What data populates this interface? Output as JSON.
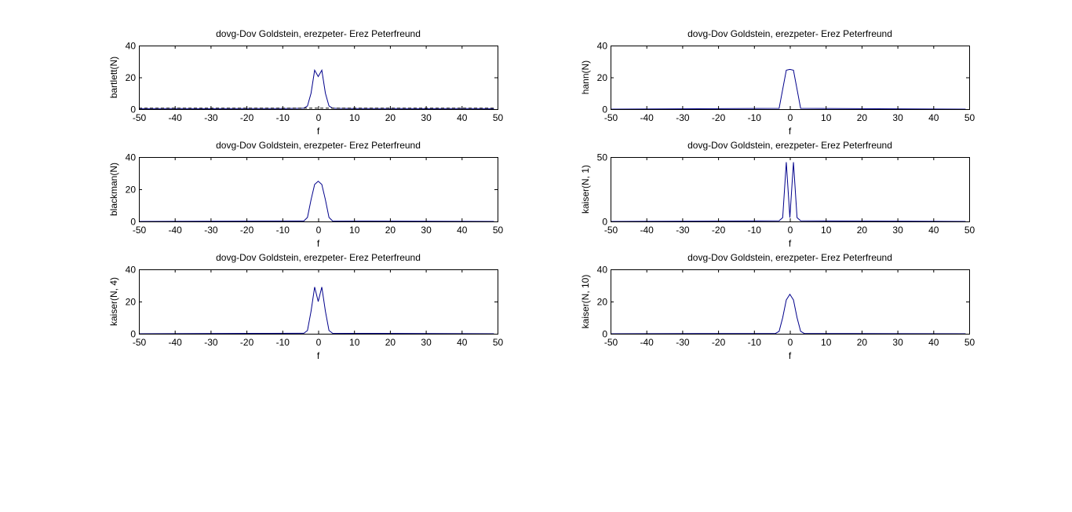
{
  "figure": {
    "background": "#ffffff",
    "line_color": "#00008b",
    "axes_color": "#000000"
  },
  "chart_data": [
    {
      "id": "bartlett",
      "type": "line",
      "title": "dovg-Dov Goldstein, erezpeter- Erez Peterfreund",
      "xlabel": "f",
      "ylabel": "bartlett(N)",
      "xlim": [
        -50,
        50
      ],
      "ylim": [
        0,
        40
      ],
      "xticks": [
        -50,
        -40,
        -30,
        -20,
        -10,
        0,
        10,
        20,
        30,
        40,
        50
      ],
      "yticks": [
        0,
        20,
        40
      ],
      "grid": false,
      "series": [
        {
          "style": "solid",
          "x": [
            -50,
            -40,
            -30,
            -20,
            -10,
            -5,
            -4,
            -3,
            -2,
            -1,
            0,
            1,
            2,
            3,
            4,
            5,
            10,
            20,
            30,
            40,
            49
          ],
          "y": [
            0.3,
            0.4,
            0.3,
            0.4,
            0.4,
            0.5,
            0.6,
            2.0,
            10.0,
            24.5,
            20.5,
            24.5,
            10.0,
            2.0,
            0.6,
            0.5,
            0.4,
            0.4,
            0.3,
            0.4,
            0.3
          ]
        },
        {
          "style": "dashed",
          "x": [
            -50,
            49
          ],
          "y": [
            0.6,
            0.6
          ]
        }
      ]
    },
    {
      "id": "hann",
      "type": "line",
      "title": "dovg-Dov Goldstein, erezpeter- Erez Peterfreund",
      "xlabel": "f",
      "ylabel": "hann(N)",
      "xlim": [
        -50,
        50
      ],
      "ylim": [
        0,
        40
      ],
      "xticks": [
        -50,
        -40,
        -30,
        -20,
        -10,
        0,
        10,
        20,
        30,
        40,
        50
      ],
      "yticks": [
        0,
        20,
        40
      ],
      "grid": false,
      "series": [
        {
          "style": "solid",
          "x": [
            -50,
            -3,
            -2,
            -1,
            0,
            1,
            2,
            3,
            49
          ],
          "y": [
            0,
            0.5,
            12.5,
            24.5,
            25,
            24.5,
            12.5,
            0.5,
            0
          ]
        }
      ]
    },
    {
      "id": "blackman",
      "type": "line",
      "title": "dovg-Dov Goldstein, erezpeter- Erez Peterfreund",
      "xlabel": "f",
      "ylabel": "blackman(N)",
      "xlim": [
        -50,
        50
      ],
      "ylim": [
        0,
        40
      ],
      "xticks": [
        -50,
        -40,
        -30,
        -20,
        -10,
        0,
        10,
        20,
        30,
        40,
        50
      ],
      "yticks": [
        0,
        20,
        40
      ],
      "grid": false,
      "series": [
        {
          "style": "solid",
          "x": [
            -50,
            -4,
            -3,
            -2,
            -1,
            0,
            1,
            2,
            3,
            4,
            49
          ],
          "y": [
            0,
            0.3,
            2.5,
            13.5,
            23,
            25,
            23,
            13.5,
            2.5,
            0.3,
            0
          ]
        }
      ]
    },
    {
      "id": "kaiser1",
      "type": "line",
      "title": "dovg-Dov Goldstein, erezpeter- Erez Peterfreund",
      "xlabel": "f",
      "ylabel": "kaiser(N, 1)",
      "xlim": [
        -50,
        50
      ],
      "ylim": [
        0,
        50
      ],
      "xticks": [
        -50,
        -40,
        -30,
        -20,
        -10,
        0,
        10,
        20,
        30,
        40,
        50
      ],
      "yticks": [
        0,
        50
      ],
      "grid": false,
      "series": [
        {
          "style": "solid",
          "x": [
            -50,
            -3,
            -2,
            -1,
            0,
            1,
            2,
            3,
            49
          ],
          "y": [
            0,
            0.5,
            3,
            46,
            3,
            46,
            3,
            0.5,
            0
          ]
        }
      ]
    },
    {
      "id": "kaiser4",
      "type": "line",
      "title": "dovg-Dov Goldstein, erezpeter- Erez Peterfreund",
      "xlabel": "f",
      "ylabel": "kaiser(N, 4)",
      "xlim": [
        -50,
        50
      ],
      "ylim": [
        0,
        40
      ],
      "xticks": [
        -50,
        -40,
        -30,
        -20,
        -10,
        0,
        10,
        20,
        30,
        40,
        50
      ],
      "yticks": [
        0,
        20,
        40
      ],
      "grid": false,
      "series": [
        {
          "style": "solid",
          "x": [
            -50,
            -4,
            -3,
            -2,
            -1,
            0,
            1,
            2,
            3,
            4,
            49
          ],
          "y": [
            0,
            0.3,
            2.0,
            14.0,
            29,
            20,
            29,
            14.0,
            2.0,
            0.3,
            0
          ]
        }
      ]
    },
    {
      "id": "kaiser10",
      "type": "line",
      "title": "dovg-Dov Goldstein, erezpeter- Erez Peterfreund",
      "xlabel": "f",
      "ylabel": "kaiser(N, 10)",
      "xlim": [
        -50,
        50
      ],
      "ylim": [
        0,
        40
      ],
      "xticks": [
        -50,
        -40,
        -30,
        -20,
        -10,
        0,
        10,
        20,
        30,
        40,
        50
      ],
      "yticks": [
        0,
        20,
        40
      ],
      "grid": false,
      "series": [
        {
          "style": "solid",
          "x": [
            -50,
            -4,
            -3,
            -2,
            -1,
            0,
            1,
            2,
            3,
            4,
            49
          ],
          "y": [
            0,
            0.2,
            1.5,
            10,
            21,
            24.5,
            21,
            10,
            1.5,
            0.2,
            0
          ]
        }
      ]
    }
  ]
}
